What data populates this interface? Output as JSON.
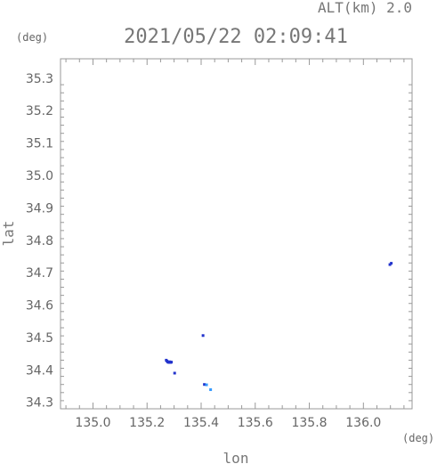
{
  "chart_data": {
    "type": "scatter",
    "title": "2021/05/22 02:09:41",
    "altitude_label": "ALT(km) 2.0",
    "xlabel": "lon",
    "ylabel": "lat",
    "x_unit": "(deg)",
    "y_unit": "(deg)",
    "xlim": [
      134.88,
      136.18
    ],
    "ylim": [
      34.28,
      35.36
    ],
    "x_ticks": [
      "135.0",
      "135.2",
      "135.4",
      "135.6",
      "135.8",
      "136.0"
    ],
    "y_ticks": [
      "34.3",
      "34.4",
      "34.5",
      "34.6",
      "34.7",
      "34.8",
      "34.9",
      "35.0",
      "35.1",
      "35.2",
      "35.3"
    ],
    "grid": false,
    "colors": {
      "mark_dark": "#2233cc",
      "mark_light": "#3399ff",
      "axis": "#999999"
    },
    "points": [
      {
        "x": 135.271,
        "y": 34.43,
        "color": "#2233cc"
      },
      {
        "x": 135.274,
        "y": 34.427,
        "color": "#2233cc"
      },
      {
        "x": 135.277,
        "y": 34.424,
        "color": "#2233cc"
      },
      {
        "x": 135.281,
        "y": 34.423,
        "color": "#2233cc"
      },
      {
        "x": 135.284,
        "y": 34.425,
        "color": "#2233cc"
      },
      {
        "x": 135.287,
        "y": 34.423,
        "color": "#2233cc"
      },
      {
        "x": 135.29,
        "y": 34.424,
        "color": "#2233cc"
      },
      {
        "x": 135.302,
        "y": 34.39,
        "color": "#2233cc"
      },
      {
        "x": 135.407,
        "y": 34.506,
        "color": "#2233cc"
      },
      {
        "x": 135.412,
        "y": 34.355,
        "color": "#2233cc"
      },
      {
        "x": 135.42,
        "y": 34.354,
        "color": "#3399ff"
      },
      {
        "x": 135.435,
        "y": 34.339,
        "color": "#3399ff"
      },
      {
        "x": 136.098,
        "y": 34.725,
        "color": "#2233cc"
      },
      {
        "x": 136.103,
        "y": 34.729,
        "color": "#2233cc"
      }
    ]
  }
}
